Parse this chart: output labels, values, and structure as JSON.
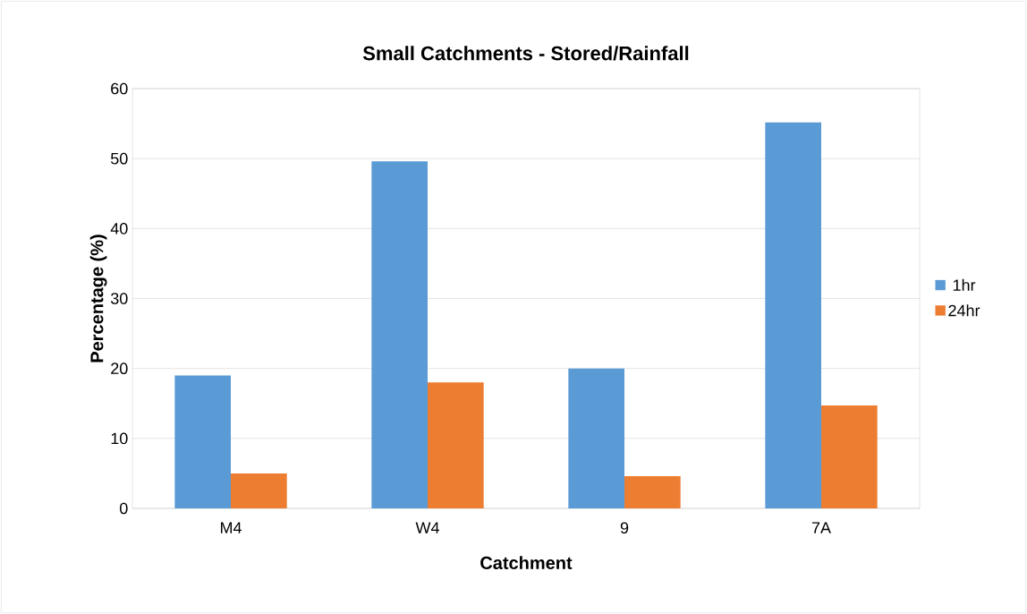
{
  "chart_data": {
    "type": "bar",
    "title": "Small Catchments - Stored/Rainfall",
    "xlabel": "Catchment",
    "ylabel": "Percentage (%)",
    "categories": [
      "M4",
      "W4",
      "9",
      "7A"
    ],
    "series": [
      {
        "name": "1hr",
        "color": "#5b9bd5",
        "values": [
          19,
          49.6,
          20,
          55.2
        ]
      },
      {
        "name": "24hr",
        "color": "#ed7d31",
        "values": [
          5,
          18,
          4.6,
          14.7
        ]
      }
    ],
    "ylim": [
      0,
      60
    ],
    "yticks": [
      0,
      10,
      20,
      30,
      40,
      50,
      60
    ],
    "grid": "y",
    "legend": "right"
  }
}
